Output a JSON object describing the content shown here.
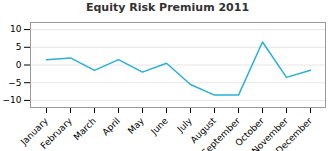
{
  "chart_data": {
    "type": "line",
    "title": "Equity Risk Premium 2011",
    "categories": [
      "January",
      "February",
      "March",
      "April",
      "May",
      "June",
      "July",
      "August",
      "September",
      "October",
      "November",
      "December"
    ],
    "values": [
      1.5,
      2.0,
      -1.5,
      1.5,
      -2.0,
      0.5,
      -5.5,
      -8.5,
      -8.5,
      6.5,
      -3.5,
      -1.5
    ],
    "color": "#29b0d4",
    "ylim": [
      -12,
      12
    ],
    "yticks": [
      -10,
      -5,
      0,
      5,
      10
    ],
    "grid": true
  }
}
